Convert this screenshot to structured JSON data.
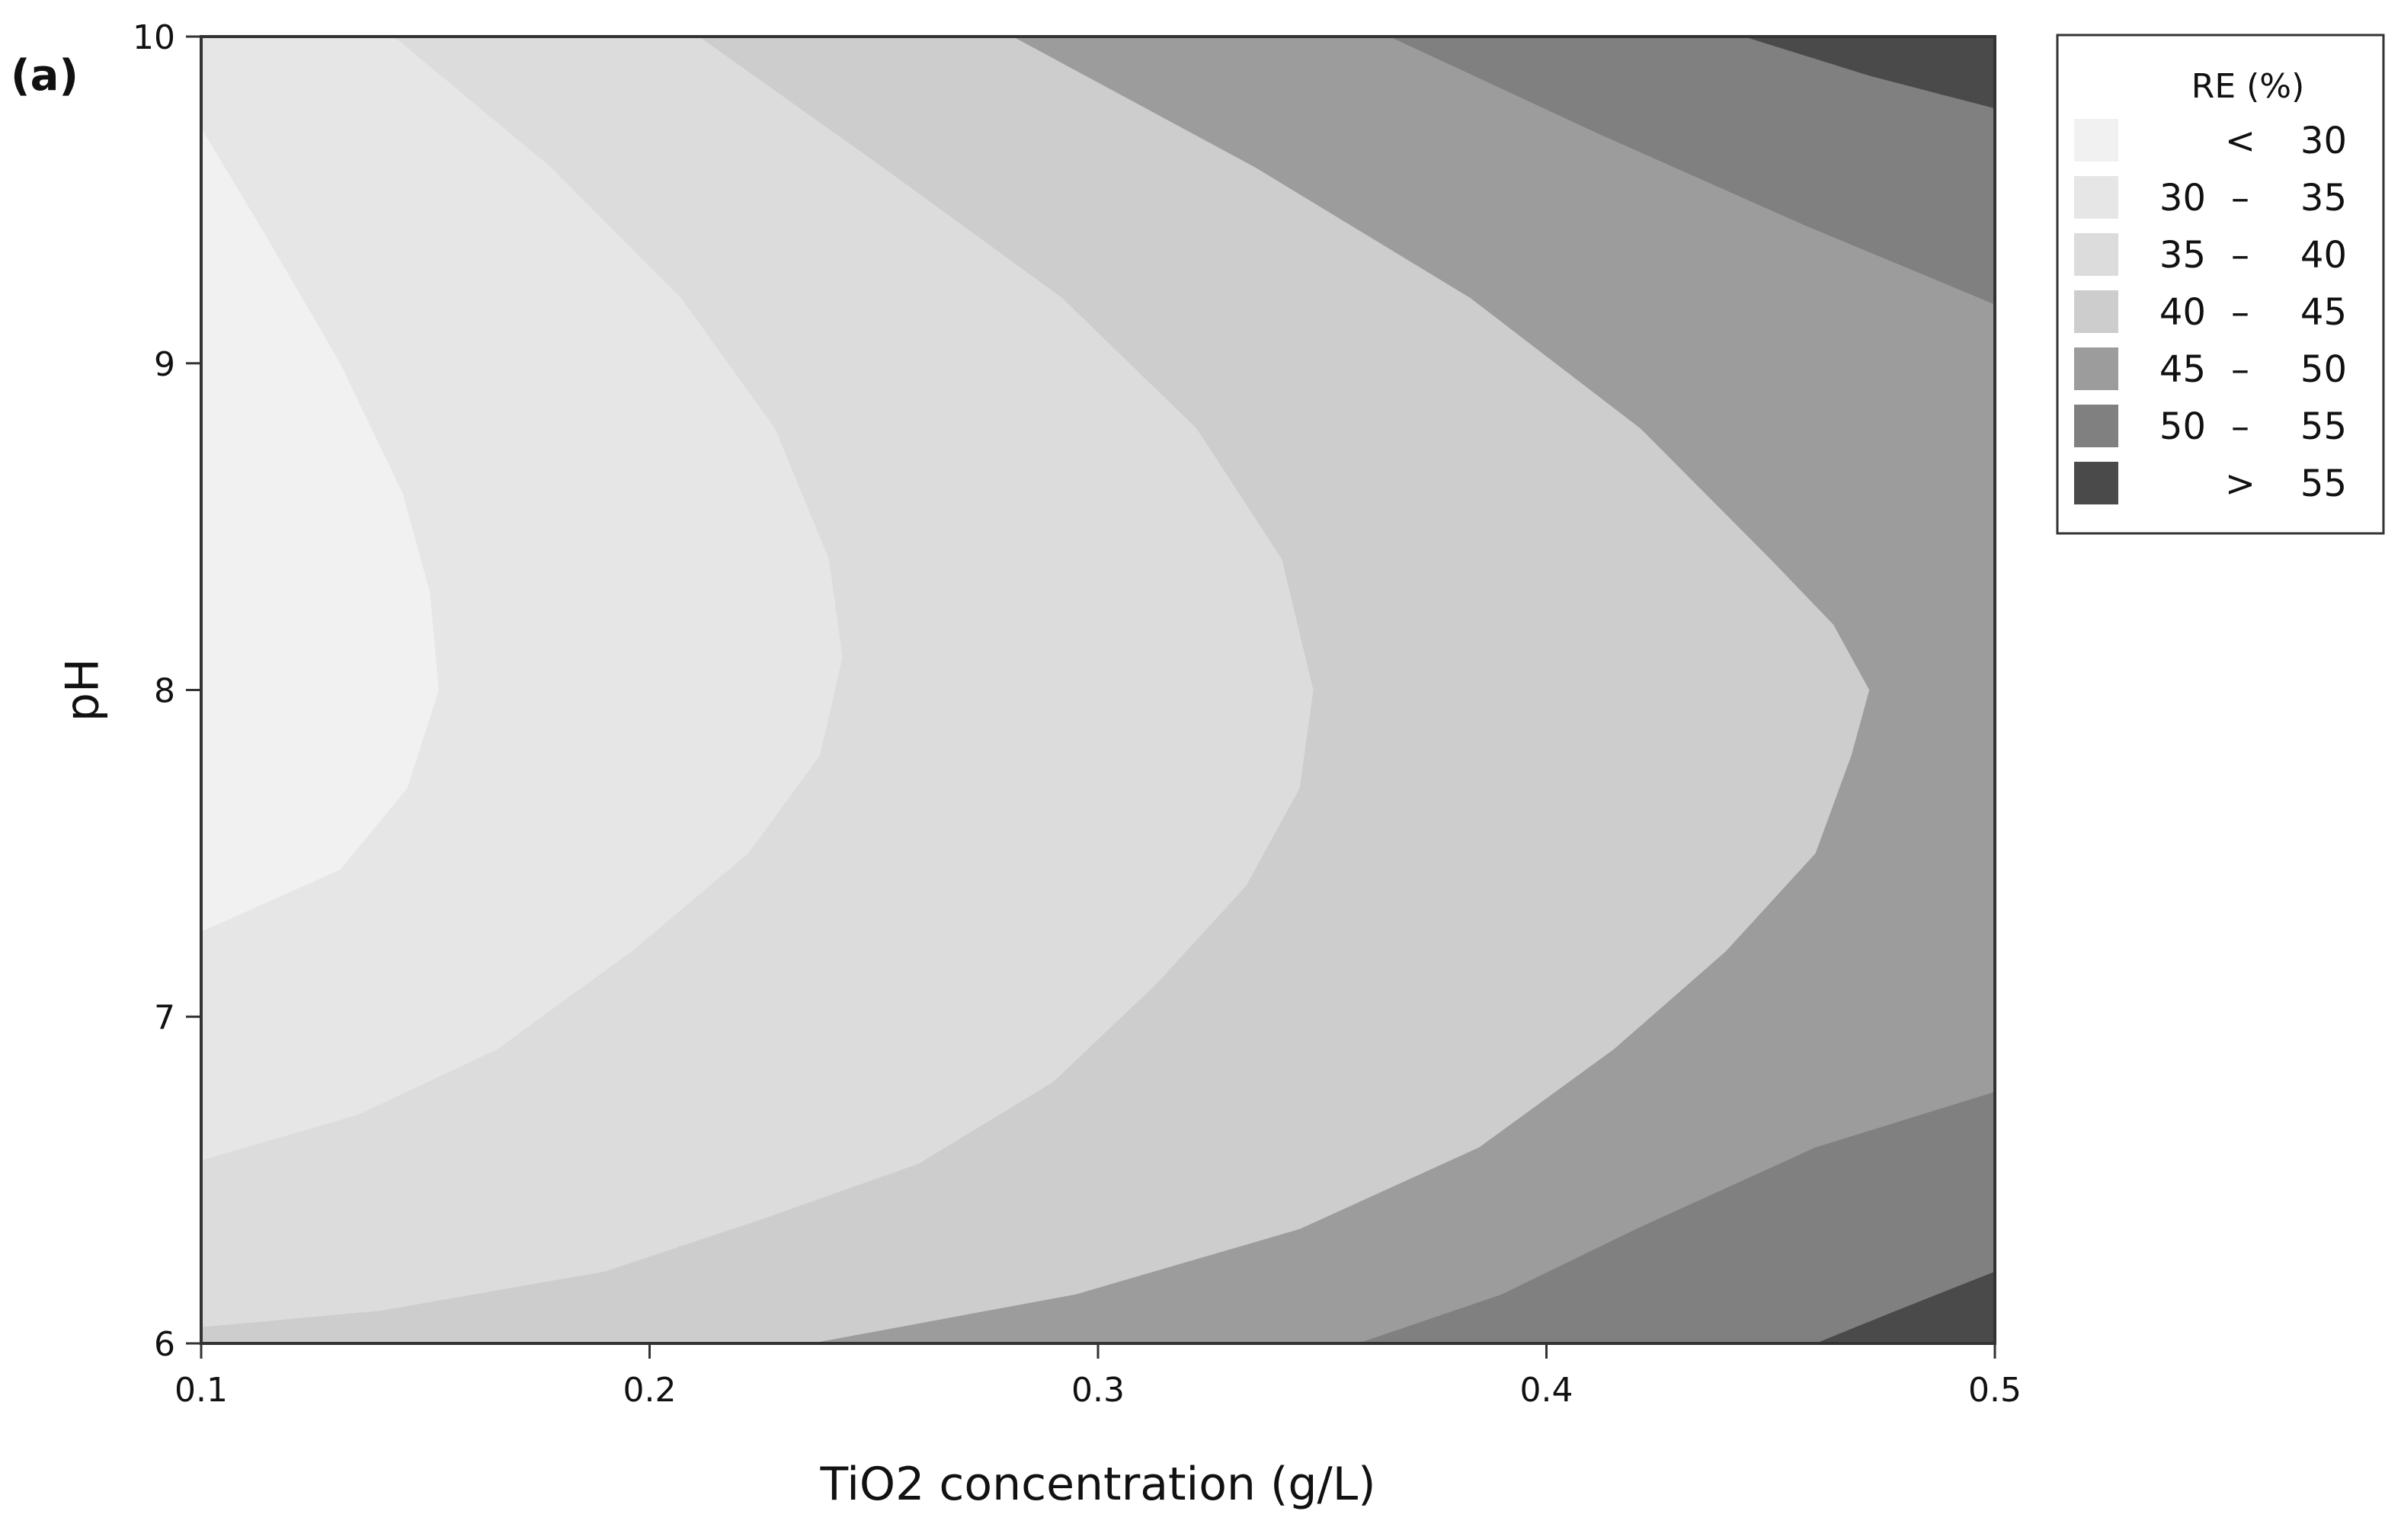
{
  "chart_data": {
    "type": "contour",
    "panel_label": "(a)",
    "xlabel": "TiO2 concentration (g/L)",
    "ylabel": "pH",
    "xlim": [
      0.1,
      0.5
    ],
    "ylim": [
      6,
      10
    ],
    "x_ticks": [
      "0.1",
      "0.2",
      "0.3",
      "0.4",
      "0.5"
    ],
    "y_ticks": [
      "6",
      "7",
      "8",
      "9",
      "10"
    ],
    "legend": {
      "title": "RE (%)",
      "position": "right",
      "items": [
        {
          "a": "",
          "sep": "<",
          "b": "30",
          "color": "#f1f1f1"
        },
        {
          "a": "30",
          "sep": "–",
          "b": "35",
          "color": "#e6e6e6"
        },
        {
          "a": "35",
          "sep": "–",
          "b": "40",
          "color": "#dcdcdc"
        },
        {
          "a": "40",
          "sep": "–",
          "b": "45",
          "color": "#cdcdcd"
        },
        {
          "a": "45",
          "sep": "–",
          "b": "50",
          "color": "#9c9c9c"
        },
        {
          "a": "50",
          "sep": "–",
          "b": "55",
          "color": "#808080"
        },
        {
          "a": "",
          "sep": ">",
          "b": "55",
          "color": "#4a4a4a"
        }
      ]
    },
    "levels": [
      30,
      35,
      40,
      45,
      50,
      55
    ],
    "contour_lines": [
      {
        "level": 30,
        "points": [
          [
            0.1,
            9.72
          ],
          [
            0.114,
            9.4
          ],
          [
            0.131,
            9.0
          ],
          [
            0.145,
            8.6
          ],
          [
            0.151,
            8.3
          ],
          [
            0.153,
            8.0
          ],
          [
            0.146,
            7.7
          ],
          [
            0.131,
            7.45
          ],
          [
            0.1,
            7.26
          ]
        ]
      },
      {
        "level": 35,
        "points": [
          [
            0.143,
            10.0
          ],
          [
            0.178,
            9.6
          ],
          [
            0.207,
            9.2
          ],
          [
            0.228,
            8.8
          ],
          [
            0.24,
            8.4
          ],
          [
            0.243,
            8.1
          ],
          [
            0.238,
            7.8
          ],
          [
            0.222,
            7.5
          ],
          [
            0.196,
            7.2
          ],
          [
            0.166,
            6.9
          ],
          [
            0.135,
            6.7
          ],
          [
            0.1,
            6.56
          ]
        ]
      },
      {
        "level": 40,
        "points": [
          [
            0.211,
            10.0
          ],
          [
            0.252,
            9.6
          ],
          [
            0.292,
            9.2
          ],
          [
            0.322,
            8.8
          ],
          [
            0.341,
            8.4
          ],
          [
            0.348,
            8.0
          ],
          [
            0.345,
            7.7
          ],
          [
            0.333,
            7.4
          ],
          [
            0.313,
            7.1
          ],
          [
            0.29,
            6.8
          ],
          [
            0.26,
            6.55
          ],
          [
            0.225,
            6.38
          ],
          [
            0.19,
            6.22
          ],
          [
            0.14,
            6.1
          ],
          [
            0.1,
            6.05
          ]
        ]
      },
      {
        "level": 45,
        "points": [
          [
            0.281,
            10.0
          ],
          [
            0.335,
            9.6
          ],
          [
            0.383,
            9.2
          ],
          [
            0.421,
            8.8
          ],
          [
            0.45,
            8.4
          ],
          [
            0.464,
            8.2
          ],
          [
            0.472,
            8.0
          ],
          [
            0.468,
            7.8
          ],
          [
            0.46,
            7.5
          ],
          [
            0.44,
            7.2
          ],
          [
            0.415,
            6.9
          ],
          [
            0.385,
            6.6
          ],
          [
            0.345,
            6.35
          ],
          [
            0.295,
            6.15
          ],
          [
            0.236,
            6.0
          ]
        ]
      },
      {
        "level": 50,
        "points": [
          [
            0.365,
            10.0
          ],
          [
            0.412,
            9.7
          ],
          [
            0.458,
            9.42
          ],
          [
            0.5,
            9.18
          ]
        ]
      },
      {
        "level": 50,
        "points": [
          [
            0.5,
            6.77
          ],
          [
            0.46,
            6.6
          ],
          [
            0.42,
            6.35
          ],
          [
            0.39,
            6.15
          ],
          [
            0.358,
            6.0
          ]
        ]
      },
      {
        "level": 55,
        "points": [
          [
            0.444,
            10.0
          ],
          [
            0.472,
            9.88
          ],
          [
            0.5,
            9.78
          ]
        ]
      },
      {
        "level": 55,
        "points": [
          [
            0.5,
            6.22
          ],
          [
            0.478,
            6.1
          ],
          [
            0.46,
            6.0
          ]
        ]
      }
    ]
  }
}
